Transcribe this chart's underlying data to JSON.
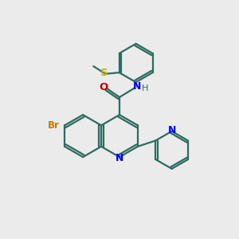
{
  "bg_color": "#ebebeb",
  "bond_color": "#2d6b5e",
  "N_color": "#0000ff",
  "O_color": "#cc0000",
  "S_color": "#ccaa00",
  "Br_color": "#cc7700",
  "line_width": 1.6,
  "fig_size": [
    3.0,
    3.0
  ],
  "dpi": 100,
  "xlim": [
    0,
    10
  ],
  "ylim": [
    0,
    10
  ]
}
